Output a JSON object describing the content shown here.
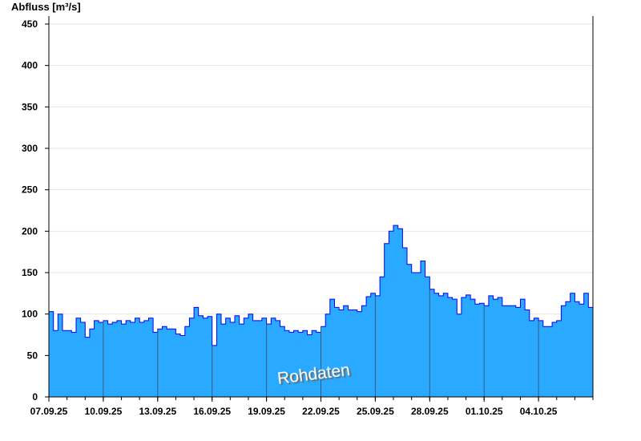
{
  "chart_data": {
    "type": "area",
    "ylabel": "Abfluss [m³/s]",
    "watermark": "Rohdaten",
    "ylim": [
      0,
      450
    ],
    "xlim": [
      "2025-09-07T00:00",
      "2025-10-07T00:00"
    ],
    "yticks": [
      0,
      50,
      100,
      150,
      200,
      250,
      300,
      350,
      400,
      450
    ],
    "xticks": [
      {
        "date": "2025-09-07",
        "label": "07.09.25"
      },
      {
        "date": "2025-09-10",
        "label": "10.09.25"
      },
      {
        "date": "2025-09-13",
        "label": "13.09.25"
      },
      {
        "date": "2025-09-16",
        "label": "16.09.25"
      },
      {
        "date": "2025-09-19",
        "label": "19.09.25"
      },
      {
        "date": "2025-09-22",
        "label": "22.09.25"
      },
      {
        "date": "2025-09-25",
        "label": "25.09.25"
      },
      {
        "date": "2025-09-28",
        "label": "28.09.25"
      },
      {
        "date": "2025-10-01",
        "label": "01.10.25"
      },
      {
        "date": "2025-10-04",
        "label": "04.10.25"
      }
    ],
    "grid": true,
    "colors": {
      "fill": "#29a9ff",
      "line": "#0000ff",
      "grid": "#e6e6e6",
      "day_lines": "#3a5a7a"
    },
    "series": [
      {
        "points": [
          [
            "2025-09-07T00:00",
            103
          ],
          [
            "2025-09-07T06:00",
            80
          ],
          [
            "2025-09-07T12:00",
            100
          ],
          [
            "2025-09-07T18:00",
            80
          ],
          [
            "2025-09-08T00:00",
            80
          ],
          [
            "2025-09-08T06:00",
            78
          ],
          [
            "2025-09-08T12:00",
            95
          ],
          [
            "2025-09-08T18:00",
            90
          ],
          [
            "2025-09-09T00:00",
            72
          ],
          [
            "2025-09-09T06:00",
            82
          ],
          [
            "2025-09-09T12:00",
            92
          ],
          [
            "2025-09-09T18:00",
            90
          ],
          [
            "2025-09-10T00:00",
            92
          ],
          [
            "2025-09-10T06:00",
            88
          ],
          [
            "2025-09-10T12:00",
            90
          ],
          [
            "2025-09-10T18:00",
            92
          ],
          [
            "2025-09-11T00:00",
            88
          ],
          [
            "2025-09-11T06:00",
            92
          ],
          [
            "2025-09-11T12:00",
            90
          ],
          [
            "2025-09-11T18:00",
            95
          ],
          [
            "2025-09-12T00:00",
            90
          ],
          [
            "2025-09-12T06:00",
            92
          ],
          [
            "2025-09-12T12:00",
            95
          ],
          [
            "2025-09-12T18:00",
            78
          ],
          [
            "2025-09-13T00:00",
            82
          ],
          [
            "2025-09-13T06:00",
            85
          ],
          [
            "2025-09-13T12:00",
            82
          ],
          [
            "2025-09-13T18:00",
            82
          ],
          [
            "2025-09-14T00:00",
            76
          ],
          [
            "2025-09-14T06:00",
            74
          ],
          [
            "2025-09-14T12:00",
            85
          ],
          [
            "2025-09-14T18:00",
            95
          ],
          [
            "2025-09-15T00:00",
            108
          ],
          [
            "2025-09-15T06:00",
            98
          ],
          [
            "2025-09-15T12:00",
            95
          ],
          [
            "2025-09-15T18:00",
            97
          ],
          [
            "2025-09-16T00:00",
            62
          ],
          [
            "2025-09-16T06:00",
            100
          ],
          [
            "2025-09-16T12:00",
            88
          ],
          [
            "2025-09-16T18:00",
            95
          ],
          [
            "2025-09-17T00:00",
            90
          ],
          [
            "2025-09-17T06:00",
            98
          ],
          [
            "2025-09-17T12:00",
            88
          ],
          [
            "2025-09-17T18:00",
            95
          ],
          [
            "2025-09-18T00:00",
            100
          ],
          [
            "2025-09-18T06:00",
            92
          ],
          [
            "2025-09-18T12:00",
            92
          ],
          [
            "2025-09-18T18:00",
            95
          ],
          [
            "2025-09-19T00:00",
            88
          ],
          [
            "2025-09-19T06:00",
            95
          ],
          [
            "2025-09-19T12:00",
            92
          ],
          [
            "2025-09-19T18:00",
            85
          ],
          [
            "2025-09-20T00:00",
            80
          ],
          [
            "2025-09-20T06:00",
            78
          ],
          [
            "2025-09-20T12:00",
            80
          ],
          [
            "2025-09-20T18:00",
            78
          ],
          [
            "2025-09-21T00:00",
            80
          ],
          [
            "2025-09-21T06:00",
            75
          ],
          [
            "2025-09-21T12:00",
            80
          ],
          [
            "2025-09-21T18:00",
            78
          ],
          [
            "2025-09-22T00:00",
            85
          ],
          [
            "2025-09-22T06:00",
            100
          ],
          [
            "2025-09-22T12:00",
            118
          ],
          [
            "2025-09-22T18:00",
            108
          ],
          [
            "2025-09-23T00:00",
            105
          ],
          [
            "2025-09-23T06:00",
            110
          ],
          [
            "2025-09-23T12:00",
            105
          ],
          [
            "2025-09-23T18:00",
            105
          ],
          [
            "2025-09-24T00:00",
            103
          ],
          [
            "2025-09-24T06:00",
            110
          ],
          [
            "2025-09-24T12:00",
            121
          ],
          [
            "2025-09-24T18:00",
            125
          ],
          [
            "2025-09-25T00:00",
            122
          ],
          [
            "2025-09-25T06:00",
            145
          ],
          [
            "2025-09-25T12:00",
            185
          ],
          [
            "2025-09-25T18:00",
            200
          ],
          [
            "2025-09-26T00:00",
            207
          ],
          [
            "2025-09-26T06:00",
            203
          ],
          [
            "2025-09-26T12:00",
            180
          ],
          [
            "2025-09-26T18:00",
            160
          ],
          [
            "2025-09-27T00:00",
            150
          ],
          [
            "2025-09-27T06:00",
            150
          ],
          [
            "2025-09-27T12:00",
            164
          ],
          [
            "2025-09-27T18:00",
            145
          ],
          [
            "2025-09-28T00:00",
            130
          ],
          [
            "2025-09-28T06:00",
            125
          ],
          [
            "2025-09-28T12:00",
            122
          ],
          [
            "2025-09-28T18:00",
            125
          ],
          [
            "2025-09-29T00:00",
            120
          ],
          [
            "2025-09-29T06:00",
            118
          ],
          [
            "2025-09-29T12:00",
            100
          ],
          [
            "2025-09-29T18:00",
            120
          ],
          [
            "2025-09-30T00:00",
            123
          ],
          [
            "2025-09-30T06:00",
            118
          ],
          [
            "2025-09-30T12:00",
            112
          ],
          [
            "2025-09-30T18:00",
            113
          ],
          [
            "2025-10-01T00:00",
            110
          ],
          [
            "2025-10-01T06:00",
            122
          ],
          [
            "2025-10-01T12:00",
            118
          ],
          [
            "2025-10-01T18:00",
            120
          ],
          [
            "2025-10-02T00:00",
            110
          ],
          [
            "2025-10-02T06:00",
            110
          ],
          [
            "2025-10-02T12:00",
            110
          ],
          [
            "2025-10-02T18:00",
            108
          ],
          [
            "2025-10-03T00:00",
            118
          ],
          [
            "2025-10-03T06:00",
            105
          ],
          [
            "2025-10-03T12:00",
            92
          ],
          [
            "2025-10-03T18:00",
            95
          ],
          [
            "2025-10-04T00:00",
            92
          ],
          [
            "2025-10-04T06:00",
            85
          ],
          [
            "2025-10-04T12:00",
            85
          ],
          [
            "2025-10-04T18:00",
            90
          ],
          [
            "2025-10-05T00:00",
            92
          ],
          [
            "2025-10-05T06:00",
            110
          ],
          [
            "2025-10-05T12:00",
            115
          ],
          [
            "2025-10-05T18:00",
            125
          ],
          [
            "2025-10-06T00:00",
            115
          ],
          [
            "2025-10-06T06:00",
            112
          ],
          [
            "2025-10-06T12:00",
            125
          ],
          [
            "2025-10-06T18:00",
            108
          ]
        ]
      }
    ]
  }
}
